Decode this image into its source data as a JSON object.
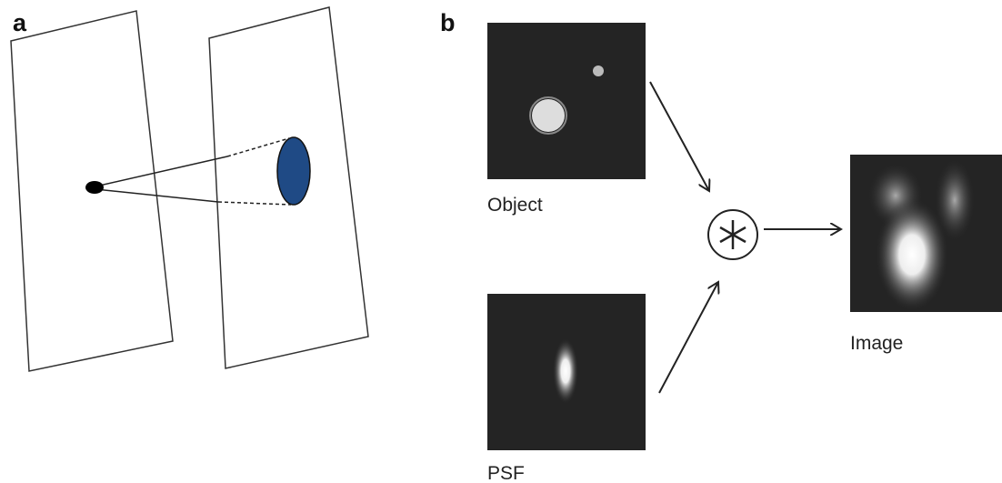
{
  "panels": {
    "a": {
      "label": "a"
    },
    "b": {
      "label": "b",
      "object": "Object",
      "psf": "PSF",
      "image": "Image"
    }
  }
}
